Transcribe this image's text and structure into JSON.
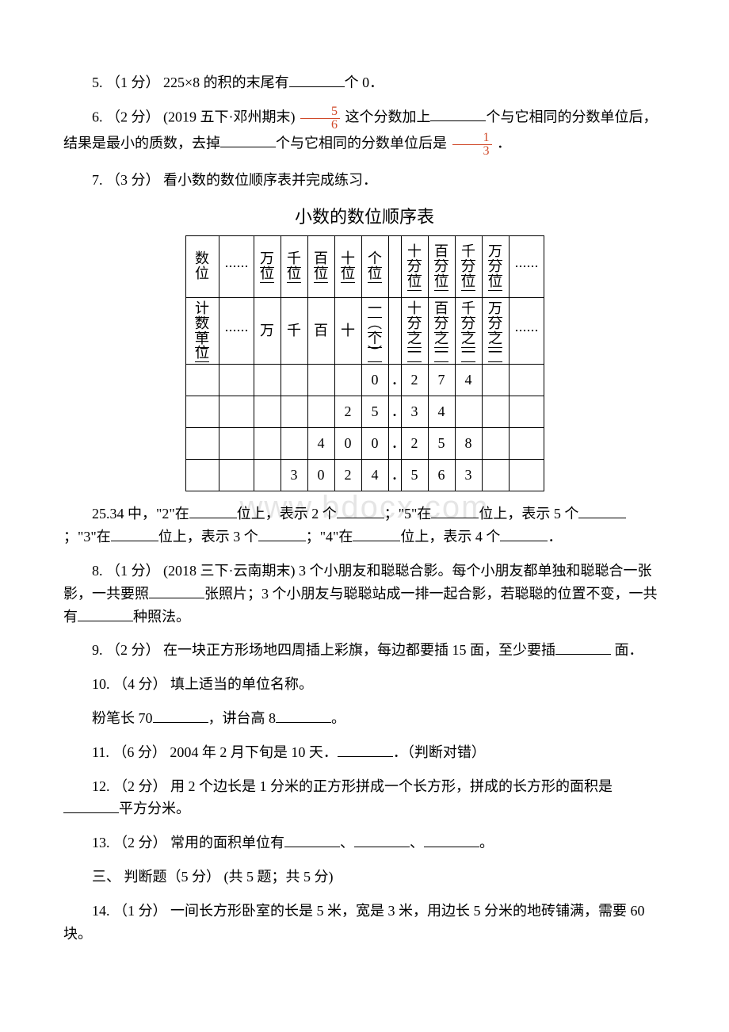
{
  "q5": {
    "prefix": "5. （1 分） 225×8 的积的末尾有",
    "suffix": "个 0．"
  },
  "q6": {
    "prefix": "6. （2 分） (2019 五下·邓州期末) ",
    "frac1_num": "5",
    "frac1_den": "6",
    "mid1": " 这个分数加上",
    "mid2": "个与它相同的分数单位后，结果是最小的质数，去掉",
    "mid3": "个与它相同的分数单位后是 ",
    "frac2_num": "1",
    "frac2_den": "3",
    "suffix": " ．"
  },
  "q7": {
    "text": "7. （3 分） 看小数的数位顺序表并完成练习．",
    "caption": "小数的数位顺序表",
    "row1": [
      "数位",
      "······",
      "万位",
      "千位",
      "百位",
      "十位",
      "个位",
      "",
      "十分位",
      "百分位",
      "千分位",
      "万分位",
      "······"
    ],
    "row2": [
      "计数单位",
      "······",
      "万",
      "千",
      "百",
      "十",
      "一︵个︶",
      "",
      "十分之一",
      "百分之一",
      "千分之一",
      "万分之一",
      "······"
    ],
    "grid": [
      [
        "",
        "",
        "",
        "",
        "",
        "",
        "0",
        ".",
        "2",
        "7",
        "4",
        "",
        ""
      ],
      [
        "",
        "",
        "",
        "",
        "",
        "2",
        "5",
        ".",
        "3",
        "4",
        "",
        "",
        ""
      ],
      [
        "",
        "",
        "",
        "",
        "4",
        "0",
        "0",
        ".",
        "2",
        "5",
        "8",
        "",
        ""
      ],
      [
        "",
        "",
        "",
        "3",
        "0",
        "2",
        "4",
        ".",
        "5",
        "6",
        "3",
        "",
        ""
      ]
    ],
    "p2a": "25.34 中，\"2\"在",
    "p2b": "位上，表示 2 个",
    "p2c": "；\"5\"在",
    "p2d": "位上，表示 5 个",
    "p2e": "；\"3\"在",
    "p2f": "位上，表示 3 个",
    "p2g": "；\"4\"在",
    "p2h": "位上，表示 4 个",
    "p2i": "．"
  },
  "q8": {
    "a": "8. （1 分） (2018 三下·云南期末) 3 个小朋友和聪聪合影。每个小朋友都单独和聪聪合一张影，一共要照",
    "b": "张照片；3 个小朋友与聪聪站成一排一起合影，若聪聪的位置不变，一共有",
    "c": "种照法。"
  },
  "q9": {
    "a": "9. （2 分） 在一块正方形场地四周插上彩旗，每边都要插 15 面，至少要插",
    "b": " 面．"
  },
  "q10": {
    "a": "10. （4 分） 填上适当的单位名称。",
    "b": "粉笔长 70",
    "c": "，讲台高 8",
    "d": "。"
  },
  "q11": {
    "a": "11. （6 分） 2004 年 2 月下旬是 10 天．",
    "b": "．（判断对错）"
  },
  "q12": {
    "a": "12. （2 分） 用 2 个边长是 1 分米的正方形拼成一个长方形，拼成的长方形的面积是",
    "b": "平方分米。"
  },
  "q13": {
    "a": "13. （2 分） 常用的面积单位有",
    "b": "、",
    "c": "、",
    "d": "。"
  },
  "sec3": "三、 判断题（5 分） (共 5 题；共 5 分)",
  "q14": "14. （1 分） 一间长方形卧室的长是 5 米，宽是 3 米，用边长 5 分米的地砖铺满，需要 60 块。",
  "watermark": "www.bdocx.com"
}
